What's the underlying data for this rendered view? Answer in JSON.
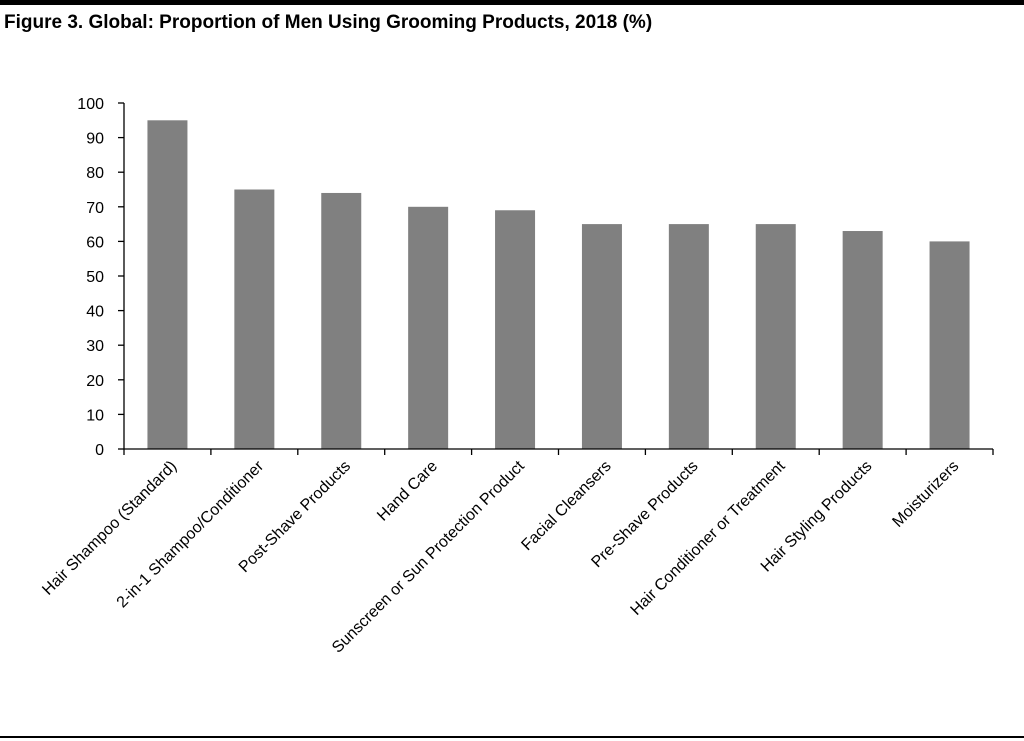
{
  "chart_data": {
    "type": "bar",
    "title": "Figure 3. Global: Proportion of Men Using Grooming Products, 2018 (%)",
    "categories": [
      "Hair Shampoo (Standard)",
      "2-in-1 Shampoo/Conditioner",
      "Post-Shave Products",
      "Hand Care",
      "Sunscreen or Sun Protection Product",
      "Facial Cleansers",
      "Pre-Shave Products",
      "Hair Conditioner or Treatment",
      "Hair Styling Products",
      "Moisturizers"
    ],
    "values": [
      95,
      75,
      74,
      70,
      69,
      65,
      65,
      65,
      63,
      60
    ],
    "color": "#808080",
    "ylim": [
      0,
      100
    ],
    "yticks": [
      0,
      10,
      20,
      30,
      40,
      50,
      60,
      70,
      80,
      90,
      100
    ],
    "grid": false
  }
}
